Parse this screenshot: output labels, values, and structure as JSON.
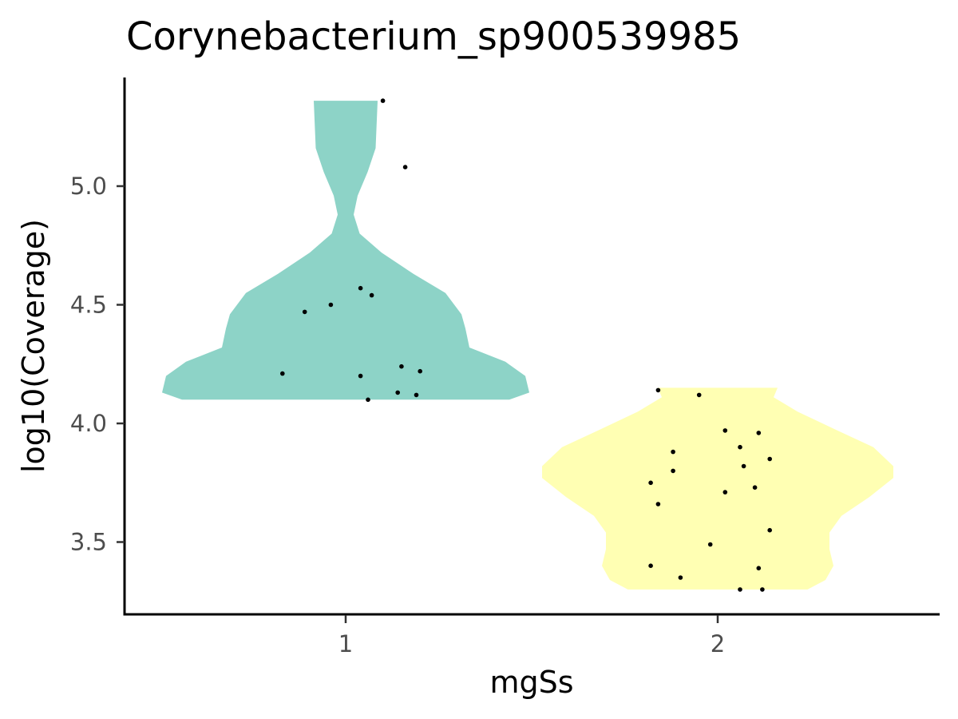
{
  "chart_data": {
    "type": "violin",
    "title": "Corynebacterium_sp900539985",
    "xlabel": "mgSs",
    "ylabel": "log10(Coverage)",
    "categories": [
      "1",
      "2"
    ],
    "y_ticks": [
      3.5,
      4.0,
      4.5,
      5.0
    ],
    "y_tick_labels": [
      "3.5",
      "4.0",
      "4.5",
      "5.0"
    ],
    "ylim": [
      3.2,
      5.4
    ],
    "grid": false,
    "legend": "none",
    "colors": {
      "1": "#8DD3C7",
      "2": "#FFFFB3"
    },
    "series": [
      {
        "category": "1",
        "color": "#8DD3C7",
        "y_range": [
          4.1,
          5.36
        ],
        "density_profile": [
          {
            "y": 4.1,
            "w": 0.82
          },
          {
            "y": 4.13,
            "w": 0.92
          },
          {
            "y": 4.2,
            "w": 0.9
          },
          {
            "y": 4.26,
            "w": 0.8
          },
          {
            "y": 4.32,
            "w": 0.62
          },
          {
            "y": 4.4,
            "w": 0.6
          },
          {
            "y": 4.46,
            "w": 0.58
          },
          {
            "y": 4.55,
            "w": 0.5
          },
          {
            "y": 4.63,
            "w": 0.34
          },
          {
            "y": 4.72,
            "w": 0.18
          },
          {
            "y": 4.8,
            "w": 0.07
          },
          {
            "y": 4.88,
            "w": 0.04
          },
          {
            "y": 4.96,
            "w": 0.06
          },
          {
            "y": 5.06,
            "w": 0.11
          },
          {
            "y": 5.16,
            "w": 0.15
          },
          {
            "y": 5.36,
            "w": 0.16
          }
        ],
        "points": [
          {
            "x": 1.1,
            "y": 5.36
          },
          {
            "x": 1.16,
            "y": 5.08
          },
          {
            "x": 1.04,
            "y": 4.57
          },
          {
            "x": 1.07,
            "y": 4.54
          },
          {
            "x": 0.96,
            "y": 4.5
          },
          {
            "x": 0.89,
            "y": 4.47
          },
          {
            "x": 1.15,
            "y": 4.24
          },
          {
            "x": 1.2,
            "y": 4.22
          },
          {
            "x": 0.83,
            "y": 4.21
          },
          {
            "x": 1.04,
            "y": 4.2
          },
          {
            "x": 1.14,
            "y": 4.13
          },
          {
            "x": 1.19,
            "y": 4.12
          },
          {
            "x": 1.06,
            "y": 4.1
          }
        ]
      },
      {
        "category": "2",
        "color": "#FFFFB3",
        "y_range": [
          3.3,
          4.15
        ],
        "density_profile": [
          {
            "y": 3.3,
            "w": 0.45
          },
          {
            "y": 3.34,
            "w": 0.54
          },
          {
            "y": 3.4,
            "w": 0.58
          },
          {
            "y": 3.47,
            "w": 0.56
          },
          {
            "y": 3.54,
            "w": 0.56
          },
          {
            "y": 3.61,
            "w": 0.62
          },
          {
            "y": 3.69,
            "w": 0.76
          },
          {
            "y": 3.77,
            "w": 0.88
          },
          {
            "y": 3.82,
            "w": 0.88
          },
          {
            "y": 3.9,
            "w": 0.78
          },
          {
            "y": 3.97,
            "w": 0.6
          },
          {
            "y": 4.05,
            "w": 0.4
          },
          {
            "y": 4.11,
            "w": 0.28
          },
          {
            "y": 4.15,
            "w": 0.3
          }
        ],
        "points": [
          {
            "x": 1.84,
            "y": 4.14
          },
          {
            "x": 1.95,
            "y": 4.12
          },
          {
            "x": 2.02,
            "y": 3.97
          },
          {
            "x": 2.11,
            "y": 3.96
          },
          {
            "x": 2.06,
            "y": 3.9
          },
          {
            "x": 1.88,
            "y": 3.88
          },
          {
            "x": 2.14,
            "y": 3.85
          },
          {
            "x": 2.07,
            "y": 3.82
          },
          {
            "x": 1.88,
            "y": 3.8
          },
          {
            "x": 1.82,
            "y": 3.75
          },
          {
            "x": 2.1,
            "y": 3.73
          },
          {
            "x": 2.02,
            "y": 3.71
          },
          {
            "x": 1.84,
            "y": 3.66
          },
          {
            "x": 2.14,
            "y": 3.55
          },
          {
            "x": 1.98,
            "y": 3.49
          },
          {
            "x": 1.82,
            "y": 3.4
          },
          {
            "x": 2.11,
            "y": 3.39
          },
          {
            "x": 1.9,
            "y": 3.35
          },
          {
            "x": 2.06,
            "y": 3.3
          },
          {
            "x": 2.12,
            "y": 3.3
          }
        ]
      }
    ]
  }
}
